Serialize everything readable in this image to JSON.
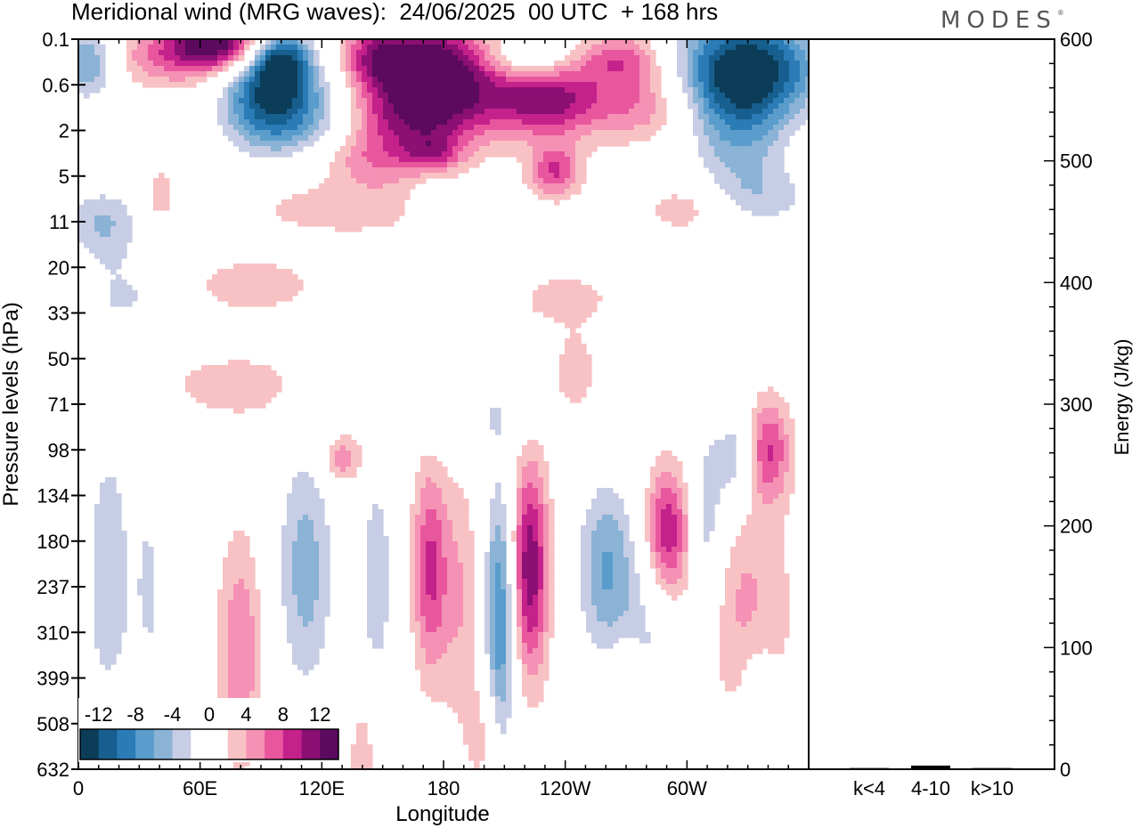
{
  "title": "Meridional wind (MRG waves):  24/06/2025  00 UTC  + 168 hrs",
  "logo": "MODES",
  "logo_mark": "®",
  "chart_data": [
    {
      "type": "heatmap",
      "title": "Meridional wind (MRG waves):  24/06/2025  00 UTC  + 168 hrs",
      "xlabel": "Longitude",
      "ylabel": "Pressure levels (hPa)",
      "x_ticks": [
        {
          "lon": 0,
          "label": "0"
        },
        {
          "lon": 60,
          "label": "60E"
        },
        {
          "lon": 120,
          "label": "120E"
        },
        {
          "lon": 180,
          "label": "180"
        },
        {
          "lon": 240,
          "label": "120W"
        },
        {
          "lon": 300,
          "label": "60W"
        }
      ],
      "xlim": [
        0,
        360
      ],
      "y_levels": [
        "0.1",
        "0.6",
        "2",
        "5",
        "11",
        "20",
        "33",
        "50",
        "71",
        "98",
        "134",
        "180",
        "237",
        "310",
        "399",
        "508",
        "632"
      ],
      "colorbar": {
        "labels": [
          "-12",
          "-8",
          "-4",
          "0",
          "4",
          "8",
          "12"
        ],
        "levels": [
          -14,
          -12,
          -10,
          -8,
          -6,
          -4,
          -2,
          2,
          4,
          6,
          8,
          10,
          12,
          14
        ],
        "colors": [
          "#0b3d59",
          "#175f8e",
          "#2a7bb6",
          "#5a9ccb",
          "#8ab3d6",
          "#c7cde4",
          "#ffffff",
          "#ffffff",
          "#f8c2c4",
          "#f591b4",
          "#e8579e",
          "#c5218b",
          "#8c0f74",
          "#5b0a5e"
        ]
      },
      "blobs": [
        {
          "lon": 70,
          "lev": 0.05,
          "v": 11,
          "rl": 16,
          "rv": 0.4
        },
        {
          "lon": 52,
          "lev": 0.35,
          "v": 7,
          "rl": 26,
          "rv": 0.5
        },
        {
          "lon": 100,
          "lev": 0.45,
          "v": -11,
          "rl": 10,
          "rv": 0.5
        },
        {
          "lon": 90,
          "lev": 1.2,
          "v": -10,
          "rl": 16,
          "rv": 0.8
        },
        {
          "lon": 112,
          "lev": 1.7,
          "v": -8,
          "rl": 20,
          "rv": 0.9
        },
        {
          "lon": 180,
          "lev": 0.6,
          "v": 14,
          "rl": 22,
          "rv": 0.7
        },
        {
          "lon": 148,
          "lev": 0.4,
          "v": 9,
          "rl": 14,
          "rv": 0.5
        },
        {
          "lon": 165,
          "lev": 1.7,
          "v": 10,
          "rl": 26,
          "rv": 0.6
        },
        {
          "lon": 140,
          "lev": 2.6,
          "v": 5,
          "rl": 25,
          "rv": 0.4
        },
        {
          "lon": 232,
          "lev": 1.3,
          "v": 11,
          "rl": 20,
          "rv": 0.6
        },
        {
          "lon": 280,
          "lev": 1.4,
          "v": 6,
          "rl": 18,
          "rv": 0.6
        },
        {
          "lon": 268,
          "lev": 0.4,
          "v": 7,
          "rl": 16,
          "rv": 0.4
        },
        {
          "lon": 330,
          "lev": 0.6,
          "v": -15,
          "rl": 26,
          "rv": 0.8
        },
        {
          "lon": 325,
          "lev": 2,
          "v": -7,
          "rl": 18,
          "rv": 1.0
        },
        {
          "lon": 218,
          "lev": 0.4,
          "v": -6,
          "rl": 20,
          "rv": 0.4
        },
        {
          "lon": 5,
          "lev": 0.5,
          "v": -9,
          "rl": 10,
          "rv": 0.6
        },
        {
          "lon": 235,
          "lev": 2.9,
          "v": 8,
          "rl": 9,
          "rv": 0.4
        },
        {
          "lon": 175,
          "lev": 2.5,
          "v": 5,
          "rl": 10,
          "rv": 0.3
        },
        {
          "lon": 40,
          "lev": 3.4,
          "v": 4,
          "rl": 5,
          "rv": 0.4
        },
        {
          "lon": 130,
          "lev": 3.6,
          "v": 4,
          "rl": 36,
          "rv": 0.5
        },
        {
          "lon": 300,
          "lev": 3.7,
          "v": 4,
          "rl": 14,
          "rv": 0.4
        },
        {
          "lon": 340,
          "lev": 3.5,
          "v": -4,
          "rl": 22,
          "rv": 0.5
        },
        {
          "lon": 12,
          "lev": 4,
          "v": -6,
          "rl": 14,
          "rv": 0.6
        },
        {
          "lon": 175,
          "lev": 3.6,
          "v": -4,
          "rl": 8,
          "rv": 0.4
        },
        {
          "lon": 85,
          "lev": 5.4,
          "v": 4,
          "rl": 22,
          "rv": 0.4
        },
        {
          "lon": 240,
          "lev": 5.7,
          "v": 3.5,
          "rl": 16,
          "rv": 0.4
        },
        {
          "lon": 25,
          "lev": 5.6,
          "v": -3.5,
          "rl": 20,
          "rv": 0.7
        },
        {
          "lon": 245,
          "lev": 7.3,
          "v": 4,
          "rl": 7,
          "rv": 0.6
        },
        {
          "lon": 80,
          "lev": 7.6,
          "v": 3.5,
          "rl": 30,
          "rv": 0.5
        },
        {
          "lon": 195,
          "lev": 8.2,
          "v": -3.5,
          "rl": 18,
          "rv": 0.6
        },
        {
          "lon": 15,
          "lev": 9.5,
          "v": -3.5,
          "rl": 18,
          "rv": 2.2
        },
        {
          "lon": 130,
          "lev": 9.2,
          "v": 6,
          "rl": 8,
          "rv": 0.4
        },
        {
          "lon": 340,
          "lev": 9.0,
          "v": 8,
          "rl": 8,
          "rv": 0.8
        },
        {
          "lon": 324,
          "lev": 9.2,
          "v": -6,
          "rl": 7,
          "rv": 0.8
        },
        {
          "lon": 310,
          "lev": 10.6,
          "v": -6,
          "rl": 6,
          "rv": 1.5
        },
        {
          "lon": 290,
          "lev": 10.8,
          "v": 10,
          "rl": 8,
          "rv": 1.0
        },
        {
          "lon": 260,
          "lev": 11.6,
          "v": -8,
          "rl": 11,
          "rv": 1.5
        },
        {
          "lon": 222,
          "lev": 11.6,
          "v": 12,
          "rl": 7,
          "rv": 1.7
        },
        {
          "lon": 208,
          "lev": 12.6,
          "v": -11,
          "rl": 6,
          "rv": 2.2
        },
        {
          "lon": 173,
          "lev": 11.6,
          "v": 8,
          "rl": 6,
          "rv": 1.6
        },
        {
          "lon": 188,
          "lev": 12.2,
          "v": 4,
          "rl": 8,
          "rv": 2.0
        },
        {
          "lon": 147,
          "lev": 11.8,
          "v": -6,
          "rl": 6,
          "rv": 1.8
        },
        {
          "lon": 112,
          "lev": 11.6,
          "v": -7,
          "rl": 11,
          "rv": 2.2
        },
        {
          "lon": 80,
          "lev": 13.4,
          "v": 6,
          "rl": 8,
          "rv": 1.8
        },
        {
          "lon": 40,
          "lev": 12.0,
          "v": -4,
          "rl": 6,
          "rv": 1.5
        },
        {
          "lon": 15,
          "lev": 13.5,
          "v": -3.5,
          "rl": 16,
          "rv": 2.0
        },
        {
          "lon": 43,
          "lev": 11.5,
          "v": 4,
          "rl": 4,
          "rv": 1.5
        },
        {
          "lon": 330,
          "lev": 12.5,
          "v": 4.5,
          "rl": 16,
          "rv": 1.8
        },
        {
          "lon": 280,
          "lev": 13.5,
          "v": -4,
          "rl": 10,
          "rv": 1.8
        },
        {
          "lon": 270,
          "lev": 14.3,
          "v": 5,
          "rl": 6,
          "rv": 0.8
        },
        {
          "lon": 335,
          "lev": 14.6,
          "v": -3.5,
          "rl": 6,
          "rv": 1.0
        },
        {
          "lon": 140,
          "lev": 15.7,
          "v": 3.5,
          "rl": 5,
          "rv": 1.0
        },
        {
          "lon": 200,
          "lev": 15.2,
          "v": 3.5,
          "rl": 6,
          "rv": 1.0
        }
      ]
    },
    {
      "type": "bar",
      "categories": [
        "k<4",
        "4-10",
        "k>10"
      ],
      "values": [
        1,
        3,
        1
      ],
      "ylabel": "Energy (J/kg)",
      "ylim": [
        0,
        600
      ],
      "y_ticks": [
        "0",
        "100",
        "200",
        "300",
        "400",
        "500",
        "600"
      ]
    }
  ]
}
